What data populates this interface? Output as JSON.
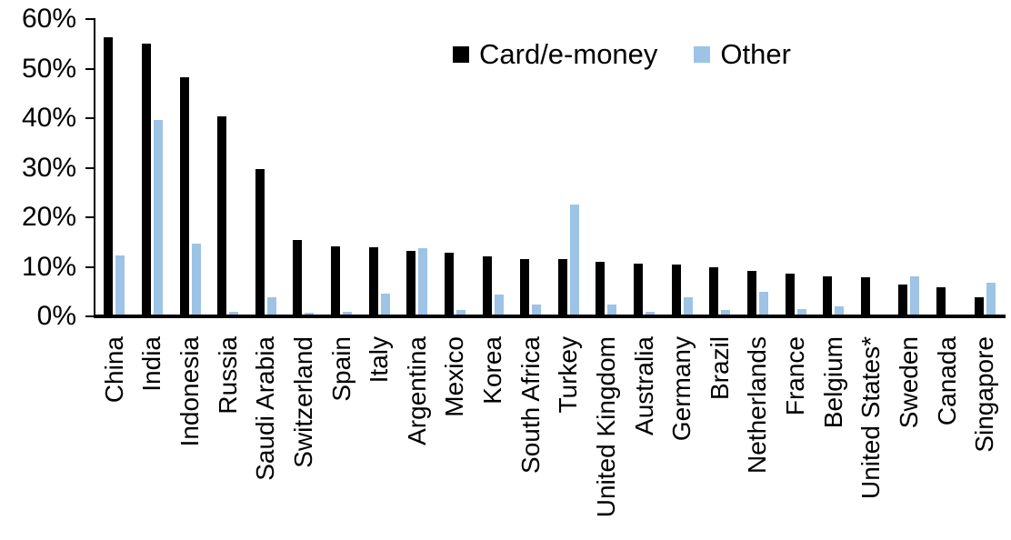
{
  "chart_data": {
    "type": "bar",
    "title": "",
    "categories": [
      "China",
      "India",
      "Indonesia",
      "Russia",
      "Saudi Arabia",
      "Switzerland",
      "Spain",
      "Italy",
      "Argentina",
      "Mexico",
      "Korea",
      "South Africa",
      "Turkey",
      "United Kingdom",
      "Australia",
      "Germany",
      "Brazil",
      "Netherlands",
      "France",
      "Belgium",
      "United States*",
      "Sweden",
      "Canada",
      "Singapore"
    ],
    "series": [
      {
        "name": "Card/e-money",
        "color": "#000000",
        "values": [
          56.3,
          55.0,
          48.3,
          40.4,
          29.8,
          15.5,
          14.1,
          13.9,
          13.3,
          12.8,
          12.2,
          11.6,
          11.6,
          11.0,
          10.7,
          10.5,
          10.0,
          9.2,
          8.7,
          8.1,
          7.9,
          6.5,
          5.9,
          3.9
        ]
      },
      {
        "name": "Other",
        "color": "#9DC3E6",
        "values": [
          12.3,
          39.7,
          14.6,
          1.0,
          3.8,
          0.8,
          1.0,
          4.6,
          13.8,
          1.3,
          4.4,
          2.4,
          22.5,
          2.3,
          1.0,
          3.9,
          1.2,
          4.9,
          1.5,
          2.0,
          0.4,
          8.1,
          0.1,
          6.7
        ]
      }
    ],
    "xlabel": "",
    "ylabel": "",
    "ylim": [
      0,
      60
    ],
    "yticks": [
      0,
      10,
      20,
      30,
      40,
      50,
      60
    ],
    "ytick_labels": [
      "0%",
      "10%",
      "20%",
      "30%",
      "40%",
      "50%",
      "60%"
    ],
    "grid": false,
    "legend_position": "top-center",
    "axis_color": "#000000",
    "background": "#FFFFFF"
  }
}
